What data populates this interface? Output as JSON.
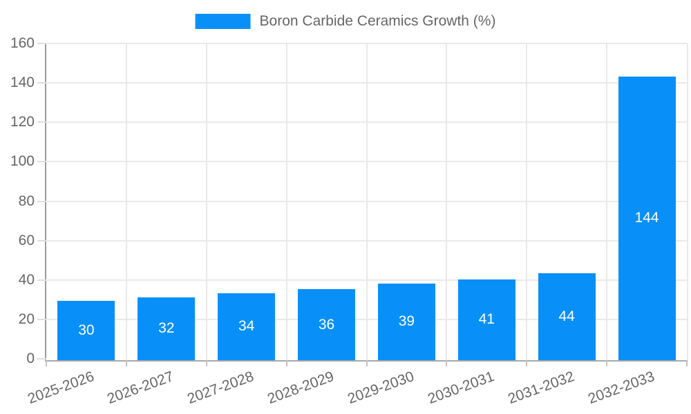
{
  "legend": {
    "label": "Boron Carbide Ceramics Growth (%)"
  },
  "chart_data": {
    "type": "bar",
    "title": "Boron Carbide Ceramics Growth (%)",
    "legend_position": "top-center",
    "categories": [
      "2025-2026",
      "2026-2027",
      "2027-2028",
      "2028-2029",
      "2029-2030",
      "2030-2031",
      "2031-2032",
      "2032-2033"
    ],
    "values": [
      30,
      32,
      34,
      36,
      39,
      41,
      44,
      144
    ],
    "xlabel": "",
    "ylabel": "",
    "ylim": [
      0,
      160
    ],
    "yticks": [
      0,
      20,
      40,
      60,
      80,
      100,
      120,
      140,
      160
    ],
    "grid": true,
    "x_label_rotation_deg": -20,
    "colors": {
      "bar": "#0990f8",
      "value_label": "#ffffff",
      "tick_text": "#666666",
      "grid_line": "#e9e9e9",
      "axis_line": "#9a9a9a"
    }
  }
}
